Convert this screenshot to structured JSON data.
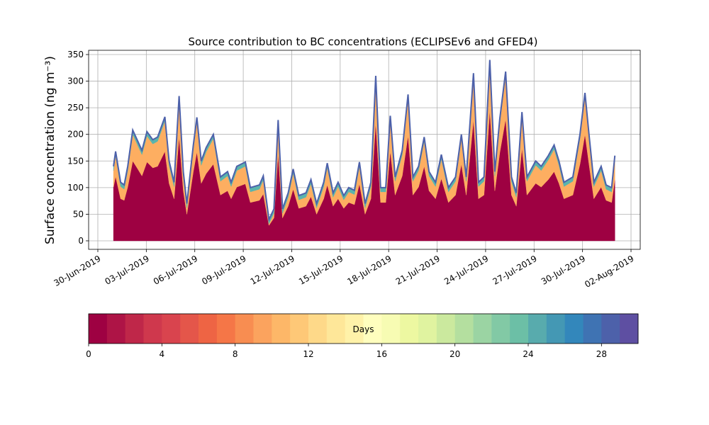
{
  "chart_data": {
    "type": "stacked_area",
    "title": "Source contribution to BC concentrations (ECLIPSEv6 and GFED4)",
    "ylabel": "Surface concentration (ng m⁻³)",
    "x": [
      0.97,
      1.1,
      1.41,
      1.63,
      1.85,
      2.16,
      2.43,
      2.73,
      3.04,
      3.4,
      3.7,
      4.15,
      4.41,
      4.72,
      5.03,
      5.29,
      5.51,
      5.91,
      6.13,
      6.4,
      6.7,
      7.15,
      7.59,
      8.03,
      8.25,
      8.6,
      9.13,
      9.44,
      10.0,
      10.24,
      10.59,
      10.9,
      11.16,
      11.43,
      11.78,
      12.09,
      12.44,
      12.88,
      13.19,
      13.54,
      13.98,
      14.2,
      14.56,
      14.87,
      15.22,
      15.53,
      15.88,
      16.19,
      16.54,
      16.9,
      17.2,
      17.5,
      17.82,
      18.1,
      18.4,
      18.84,
      19.2,
      19.5,
      19.85,
      20.2,
      20.5,
      20.9,
      21.26,
      21.7,
      22.14,
      22.5,
      22.8,
      23.25,
      23.56,
      23.9,
      24.26,
      24.57,
      24.88,
      25.24,
      25.6,
      25.9,
      26.25,
      26.56,
      27.1,
      27.44,
      27.88,
      28.24,
      28.54,
      28.85,
      29.4,
      29.84,
      30.15,
      30.4,
      30.7,
      31.15,
      31.46,
      31.8,
      32.0
    ],
    "series": [
      {
        "color": "#9e0142",
        "values": [
          101,
          121,
          79,
          76,
          101,
          150,
          137,
          122,
          148,
          137,
          140,
          168,
          108,
          79,
          196,
          94,
          50,
          130,
          167,
          108,
          126,
          144,
          86,
          94,
          79,
          101,
          107,
          72,
          76,
          88,
          29,
          43,
          163,
          43,
          65,
          97,
          61,
          65,
          83,
          50,
          79,
          105,
          65,
          79,
          61,
          72,
          68,
          107,
          50,
          79,
          223,
          72,
          72,
          169,
          86,
          122,
          198,
          86,
          101,
          140,
          94,
          79,
          117,
          72,
          86,
          144,
          86,
          227,
          79,
          86,
          245,
          94,
          166,
          229,
          86,
          65,
          174,
          86,
          108,
          101,
          115,
          130,
          108,
          79,
          86,
          144,
          200,
          144,
          79,
          101,
          76,
          72,
          115
        ]
      },
      {
        "color": "#fdae61",
        "values": [
          31,
          39,
          23,
          21,
          31,
          50,
          45,
          40,
          49,
          45,
          47,
          57,
          34,
          23,
          68,
          28,
          12,
          42,
          57,
          34,
          41,
          48,
          26,
          28,
          23,
          31,
          33,
          20,
          21,
          26,
          3,
          9,
          56,
          9,
          17,
          30,
          16,
          17,
          24,
          12,
          23,
          33,
          17,
          23,
          16,
          20,
          19,
          33,
          12,
          23,
          79,
          20,
          20,
          58,
          26,
          40,
          69,
          26,
          31,
          47,
          28,
          23,
          37,
          20,
          26,
          48,
          26,
          80,
          23,
          26,
          87,
          28,
          56,
          81,
          26,
          17,
          60,
          26,
          34,
          31,
          37,
          42,
          34,
          23,
          26,
          48,
          70,
          48,
          23,
          31,
          21,
          20,
          37
        ]
      },
      {
        "color": "#5ab4ac",
        "values": [
          8,
          8,
          8,
          8,
          8,
          8,
          8,
          8,
          8,
          8,
          8,
          8,
          8,
          8,
          8,
          8,
          8,
          8,
          8,
          8,
          8,
          8,
          8,
          8,
          8,
          8,
          8,
          8,
          8,
          8,
          8,
          8,
          8,
          8,
          8,
          8,
          8,
          8,
          8,
          8,
          8,
          8,
          8,
          8,
          8,
          8,
          8,
          8,
          8,
          8,
          8,
          8,
          8,
          8,
          8,
          8,
          8,
          8,
          8,
          8,
          8,
          8,
          8,
          8,
          8,
          8,
          8,
          8,
          8,
          8,
          8,
          8,
          8,
          8,
          8,
          8,
          8,
          8,
          8,
          8,
          8,
          8,
          8,
          8,
          8,
          8,
          8,
          8,
          8,
          8,
          8,
          8,
          8
        ]
      }
    ],
    "line_color": "#4d61aa",
    "xlim": [
      -0.57,
      33.57
    ],
    "xticks": [
      {
        "value": 0,
        "label": "30-Jun-2019"
      },
      {
        "value": 3,
        "label": "03-Jul-2019"
      },
      {
        "value": 6,
        "label": "06-Jul-2019"
      },
      {
        "value": 9,
        "label": "09-Jul-2019"
      },
      {
        "value": 12,
        "label": "12-Jul-2019"
      },
      {
        "value": 15,
        "label": "15-Jul-2019"
      },
      {
        "value": 18,
        "label": "18-Jul-2019"
      },
      {
        "value": 21,
        "label": "21-Jul-2019"
      },
      {
        "value": 24,
        "label": "24-Jul-2019"
      },
      {
        "value": 27,
        "label": "27-Jul-2019"
      },
      {
        "value": 30,
        "label": "30-Jul-2019"
      },
      {
        "value": 33,
        "label": "02-Aug-2019"
      }
    ],
    "ylim": [
      -16,
      358
    ],
    "yticks": [
      0,
      50,
      100,
      150,
      200,
      250,
      300,
      350
    ],
    "grid": true,
    "colorbar": {
      "label": "Days",
      "lim": [
        0,
        30
      ],
      "ticks": [
        0,
        4,
        8,
        12,
        16,
        20,
        24,
        28
      ],
      "colors": [
        "#9e0142",
        "#ae1446",
        "#bf2749",
        "#cf384d",
        "#d9444e",
        "#e4564a",
        "#ee6444",
        "#f57647",
        "#f88d51",
        "#fba35e",
        "#fdb768",
        "#fec877",
        "#fed989",
        "#fee799",
        "#fff2a9",
        "#fffebe",
        "#f7fcb3",
        "#edf8a1",
        "#e0f3a0",
        "#cbe99e",
        "#b4df9f",
        "#9bd4a3",
        "#82c9a5",
        "#6cbfa6",
        "#58abad",
        "#4498b4",
        "#3387bb",
        "#3f73b3",
        "#4d61aa",
        "#5e4fa2"
      ]
    }
  }
}
